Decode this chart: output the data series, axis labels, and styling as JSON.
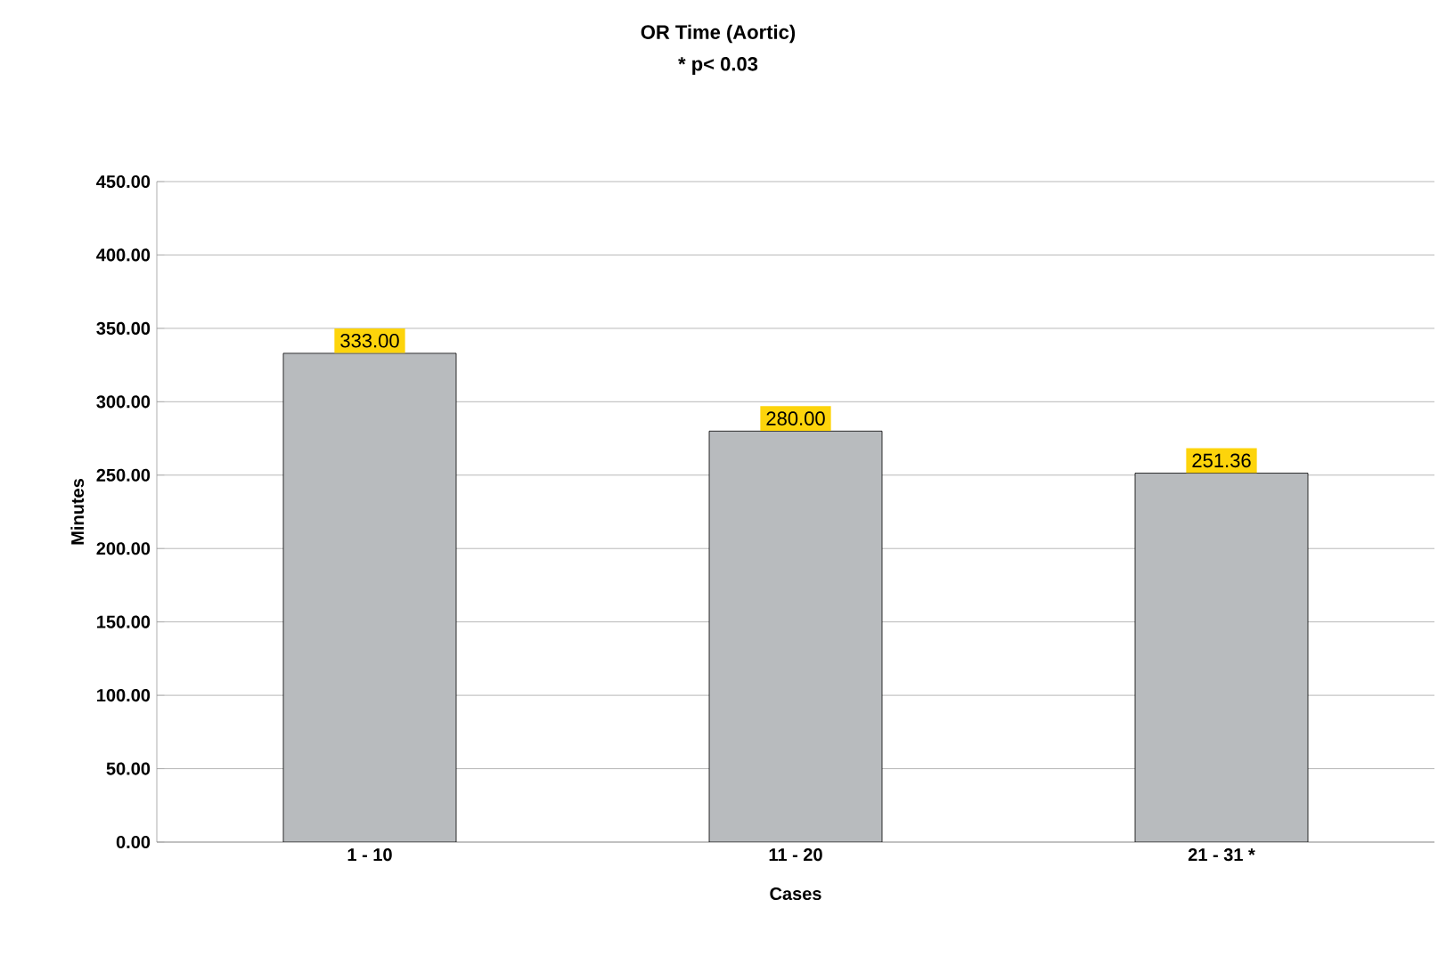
{
  "chart_data": {
    "type": "bar",
    "title": "OR Time (Aortic)",
    "subtitle": "* p< 0.03",
    "xlabel": "Cases",
    "ylabel": "Minutes",
    "categories": [
      "1 - 10",
      "11 - 20",
      "21 - 31 *"
    ],
    "values": [
      333,
      280,
      251.36
    ],
    "value_labels": [
      "333.00",
      "280.00",
      "251.36"
    ],
    "color": "#b8bbbe",
    "ylim": [
      0,
      450
    ],
    "yticks": [
      {
        "value": 0,
        "label": "0.00"
      },
      {
        "value": 50,
        "label": "50.00"
      },
      {
        "value": 100,
        "label": "100.00"
      },
      {
        "value": 150,
        "label": "150.00"
      },
      {
        "value": 200,
        "label": "200.00"
      },
      {
        "value": 250,
        "label": "250.00"
      },
      {
        "value": 300,
        "label": "300.00"
      },
      {
        "value": 350,
        "label": "350.00"
      },
      {
        "value": 400,
        "label": "400.00"
      },
      {
        "value": 450,
        "label": "450.00"
      }
    ],
    "grid": "y"
  }
}
